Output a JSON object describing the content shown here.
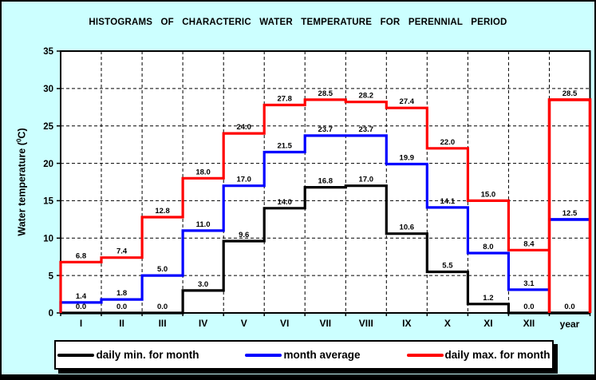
{
  "window": {
    "background": "#CCFFFF",
    "border_color": "#000000"
  },
  "title": "HISTOGRAMS OF CHARACTERIC WATER TEMPERATURE FOR PERENNIAL PERIOD",
  "y_axis": {
    "label_prefix": "Water temperature (",
    "label_sup": "0",
    "label_suffix": "C)",
    "ticks": [
      0,
      5,
      10,
      15,
      20,
      25,
      30,
      35
    ]
  },
  "x_axis": {
    "month_labels": [
      "I",
      "II",
      "III",
      "IV",
      "V",
      "VI",
      "VII",
      "VIII",
      "IX",
      "X",
      "XI",
      "XII"
    ],
    "year_label": "year"
  },
  "legend": {
    "items": [
      {
        "label": "daily min. for month",
        "color": "#000000"
      },
      {
        "label": "month average",
        "color": "#0000FF"
      },
      {
        "label": "daily max. for month",
        "color": "#FF0000"
      }
    ]
  },
  "chart_data": {
    "type": "line",
    "subtype": "step-histogram",
    "title": "HISTOGRAMS OF CHARACTERIC WATER TEMPERATURE FOR PERENNIAL PERIOD",
    "xlabel": "",
    "ylabel": "Water temperature (0C)",
    "ylim": [
      0,
      35
    ],
    "ytick_step": 5,
    "grid": true,
    "grid_style": "dashed",
    "legend_position": "bottom",
    "categories": [
      "I",
      "II",
      "III",
      "IV",
      "V",
      "VI",
      "VII",
      "VIII",
      "IX",
      "X",
      "XI",
      "XII"
    ],
    "year_category": "year",
    "series": [
      {
        "name": "daily min. for month",
        "color": "#000000",
        "values": [
          0.0,
          0.0,
          0.0,
          3.0,
          9.6,
          14.0,
          16.8,
          17.0,
          10.6,
          5.5,
          1.2,
          0.0
        ],
        "year_value": 0.0,
        "year_style": "line"
      },
      {
        "name": "month average",
        "color": "#0000FF",
        "values": [
          1.4,
          1.8,
          5.0,
          11.0,
          17.0,
          21.5,
          23.7,
          23.7,
          19.9,
          14.1,
          8.0,
          3.1
        ],
        "year_value": 12.5,
        "year_style": "line"
      },
      {
        "name": "daily max. for month",
        "color": "#FF0000",
        "values": [
          6.8,
          7.4,
          12.8,
          18.0,
          24.0,
          27.8,
          28.5,
          28.2,
          27.4,
          22.0,
          15.0,
          8.4
        ],
        "year_value": 28.5,
        "year_style": "box"
      }
    ]
  }
}
